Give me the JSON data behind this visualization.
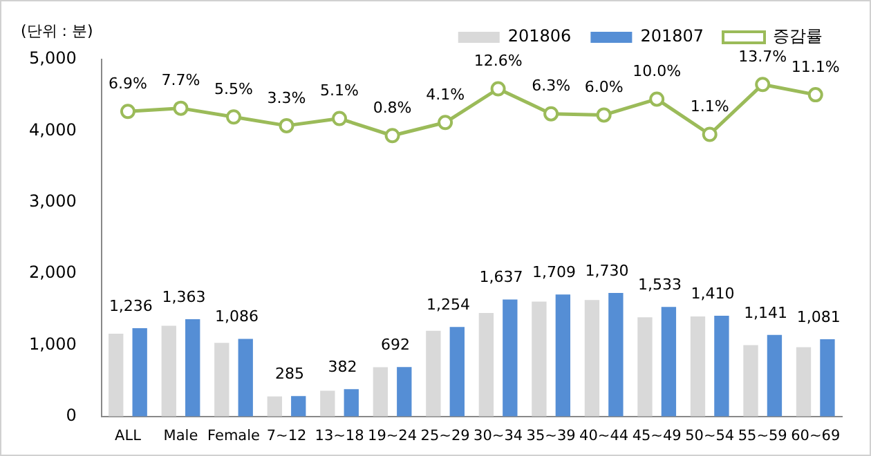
{
  "chart_data": {
    "type": "bar",
    "categories": [
      "ALL",
      "Male",
      "Female",
      "7~12",
      "13~18",
      "19~24",
      "25~29",
      "30~34",
      "35~39",
      "40~44",
      "45~49",
      "50~54",
      "55~59",
      "60~69"
    ],
    "series": [
      {
        "name": "201806",
        "color": "#d9d9d9",
        "values": [
          1160,
          1270,
          1030,
          280,
          360,
          690,
          1200,
          1450,
          1610,
          1630,
          1390,
          1400,
          1000,
          970
        ]
      },
      {
        "name": "201807",
        "color": "#558ed5",
        "values": [
          1236,
          1363,
          1086,
          285,
          382,
          692,
          1254,
          1637,
          1709,
          1730,
          1533,
          1410,
          1141,
          1081
        ],
        "value_labels": [
          "1,236",
          "1,363",
          "1,086",
          "285",
          "382",
          "692",
          "1,254",
          "1,637",
          "1,709",
          "1,730",
          "1,533",
          "1,410",
          "1,141",
          "1,081"
        ]
      },
      {
        "name": "증감률",
        "type": "line",
        "axis": "y2",
        "color": "#9bbb59",
        "marker": "circle",
        "values": [
          6.9,
          7.7,
          5.5,
          3.3,
          5.1,
          0.8,
          4.1,
          12.6,
          6.3,
          6.0,
          10.0,
          1.1,
          13.7,
          11.1
        ],
        "value_labels": [
          "6.9%",
          "7.7%",
          "5.5%",
          "3.3%",
          "5.1%",
          "0.8%",
          "4.1%",
          "12.6%",
          "6.3%",
          "6.0%",
          "10.0%",
          "1.1%",
          "13.7%",
          "11.1%"
        ]
      }
    ],
    "ylim": [
      0,
      5000
    ],
    "yticks": [
      {
        "value": 0,
        "label": "0"
      },
      {
        "value": 1000,
        "label": "1,000"
      },
      {
        "value": 2000,
        "label": "2,000"
      },
      {
        "value": 3000,
        "label": "3,000"
      },
      {
        "value": 4000,
        "label": "4,000"
      },
      {
        "value": 5000,
        "label": "5,000"
      }
    ],
    "y2lim": [
      -70,
      20
    ],
    "grid": false,
    "legend": "top right",
    "annotations": [
      "(단위 : 분)"
    ]
  }
}
